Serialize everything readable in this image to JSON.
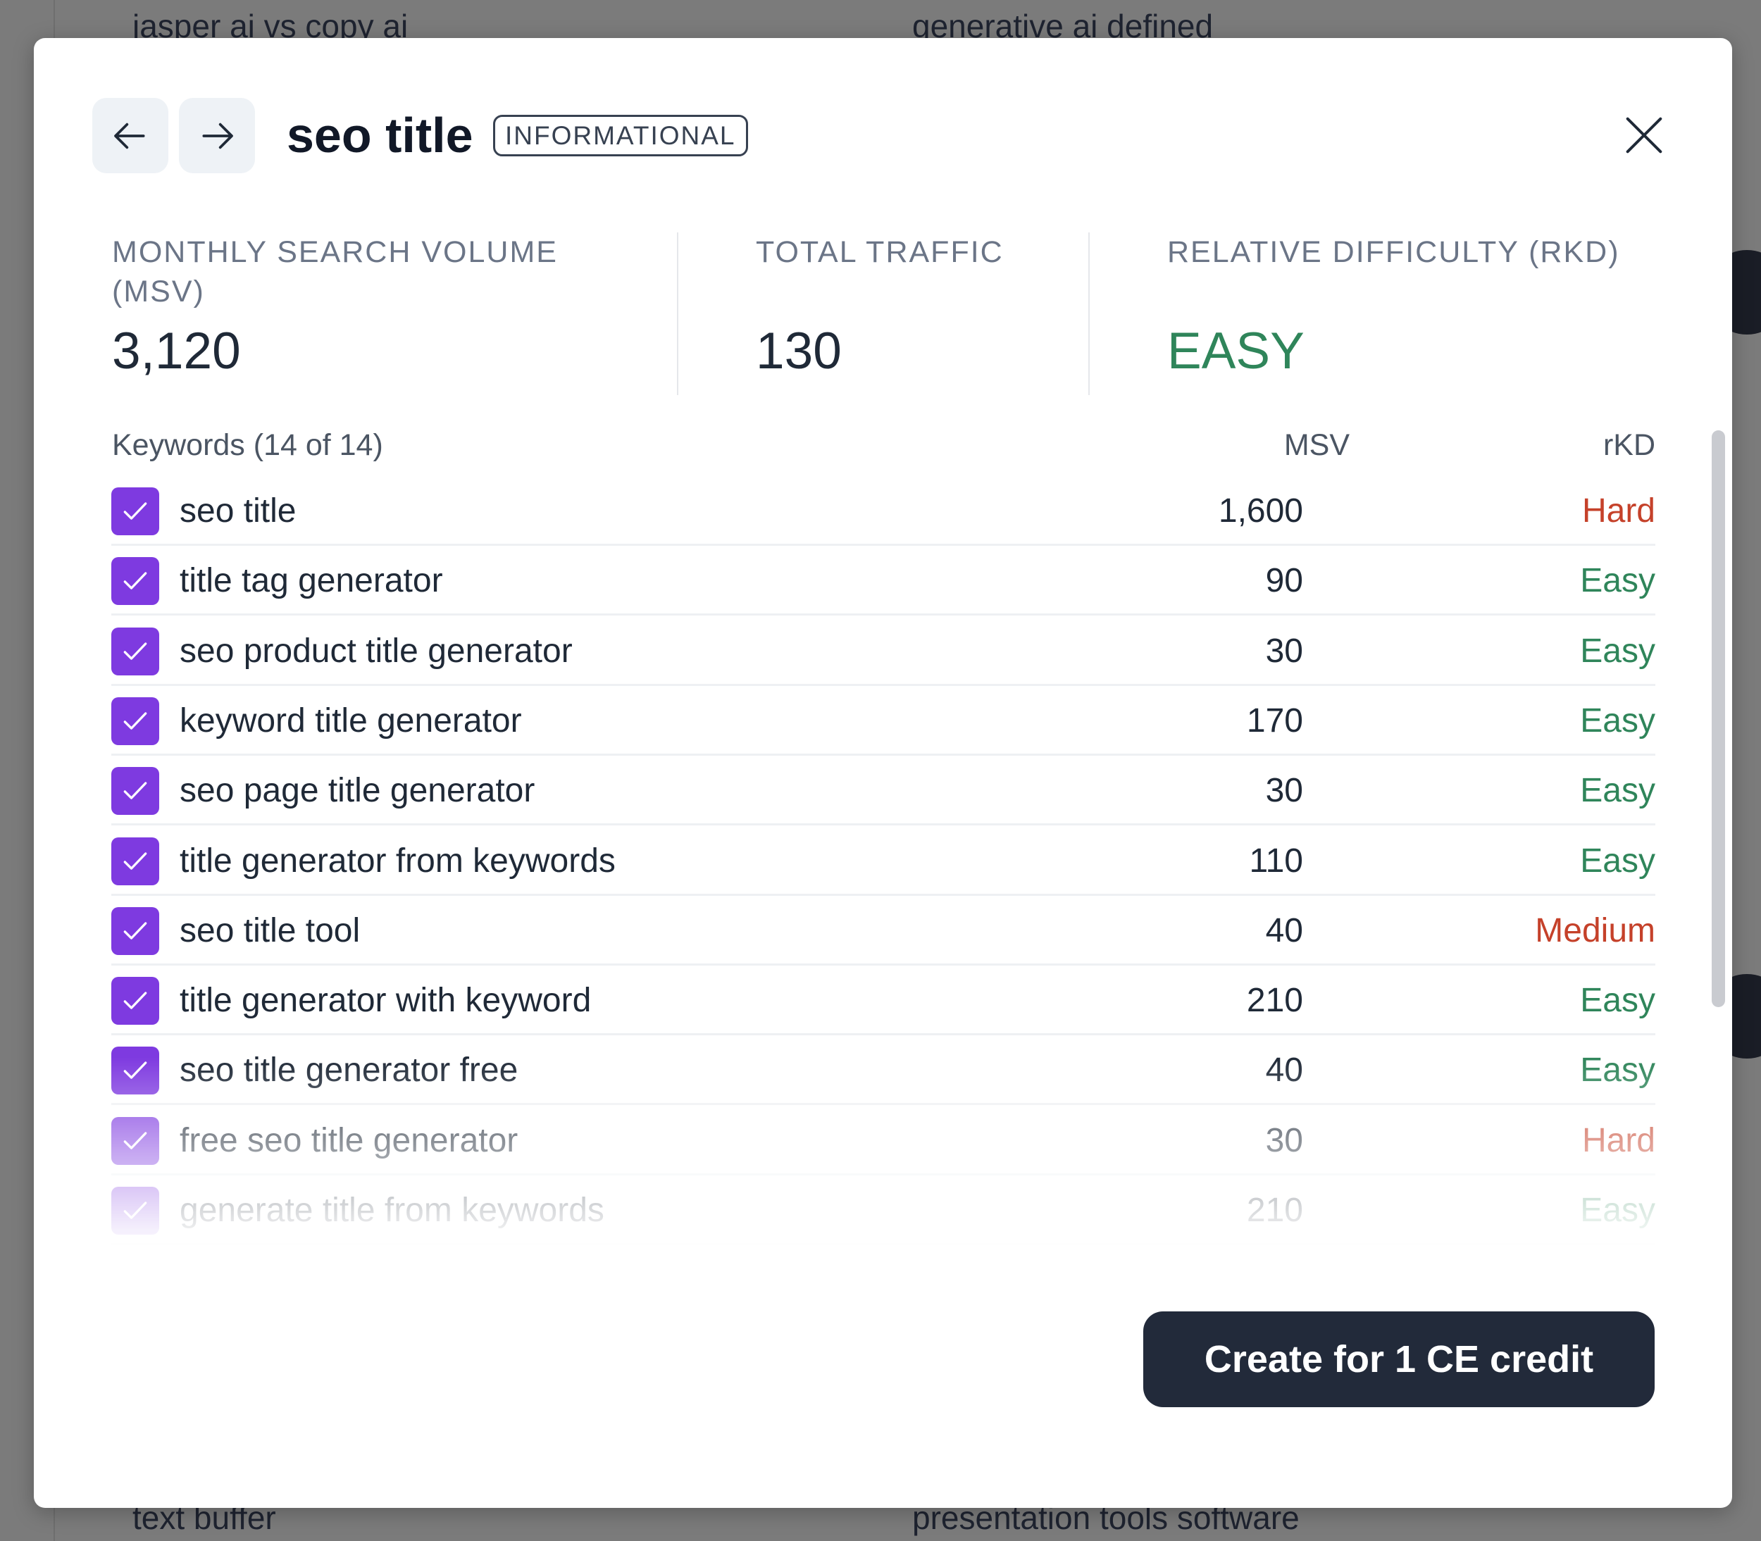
{
  "background": {
    "items": [
      "jasper ai vs copy ai",
      "generative ai defined",
      "text buffer",
      "presentation tools software"
    ]
  },
  "header": {
    "title": "seo title",
    "badge": "INFORMATIONAL",
    "prev_icon": "arrow-left-icon",
    "next_icon": "arrow-right-icon",
    "close_icon": "close-icon"
  },
  "stats": {
    "msv_label": "MONTHLY SEARCH VOLUME (MSV)",
    "msv_value": "3,120",
    "traffic_label": "TOTAL TRAFFIC",
    "traffic_value": "130",
    "difficulty_label": "RELATIVE DIFFICULTY (RKD)",
    "difficulty_value": "EASY"
  },
  "keywords": {
    "header": "Keywords (14 of 14)",
    "msv_header": "MSV",
    "rkd_header": "rKD",
    "rows": [
      {
        "keyword": "seo title",
        "msv": "1,600",
        "rkd": "Hard",
        "checked": true
      },
      {
        "keyword": "title tag generator",
        "msv": "90",
        "rkd": "Easy",
        "checked": true
      },
      {
        "keyword": "seo product title generator",
        "msv": "30",
        "rkd": "Easy",
        "checked": true
      },
      {
        "keyword": "keyword title generator",
        "msv": "170",
        "rkd": "Easy",
        "checked": true
      },
      {
        "keyword": "seo page title generator",
        "msv": "30",
        "rkd": "Easy",
        "checked": true
      },
      {
        "keyword": "title generator from keywords",
        "msv": "110",
        "rkd": "Easy",
        "checked": true
      },
      {
        "keyword": "seo title tool",
        "msv": "40",
        "rkd": "Medium",
        "checked": true
      },
      {
        "keyword": "title generator with keyword",
        "msv": "210",
        "rkd": "Easy",
        "checked": true
      },
      {
        "keyword": "seo title generator free",
        "msv": "40",
        "rkd": "Easy",
        "checked": true
      },
      {
        "keyword": "free seo title generator",
        "msv": "30",
        "rkd": "Hard",
        "checked": true
      },
      {
        "keyword": "generate title from keywords",
        "msv": "210",
        "rkd": "Easy",
        "checked": true
      }
    ]
  },
  "colors": {
    "accent": "#7e3ae0",
    "easy": "#2f855a",
    "hard": "#c5412a",
    "medium": "#c5412a",
    "button": "#222a3a"
  },
  "cta_label": "Create for 1 CE credit"
}
